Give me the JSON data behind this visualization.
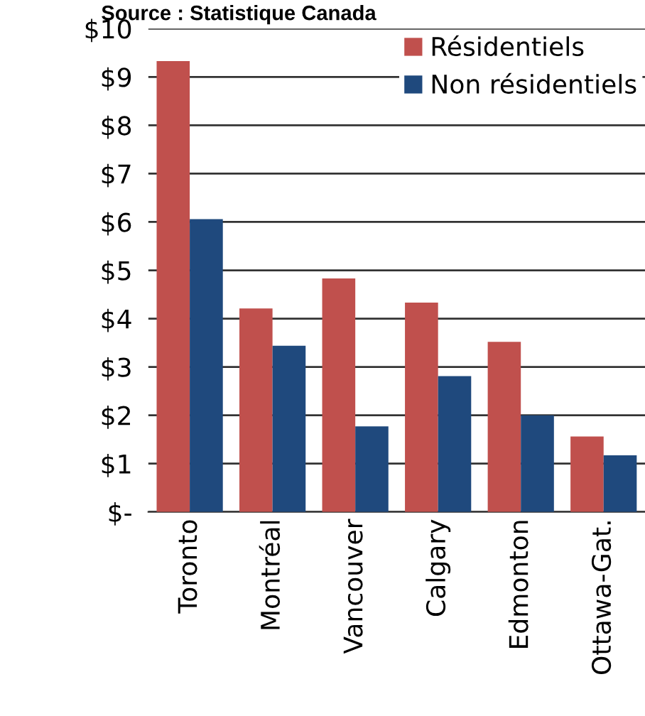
{
  "chart_data": {
    "type": "bar",
    "title": "Source : Statistique Canada",
    "categories": [
      "Toronto",
      "Montréal",
      "Vancouver",
      "Calgary",
      "Edmonton",
      "Ottawa-Gat."
    ],
    "series": [
      {
        "name": "Résidentiels",
        "color": "#c0504d",
        "values": [
          9.33,
          4.21,
          4.83,
          4.33,
          3.52,
          1.56
        ]
      },
      {
        "name": "Non résidentiels",
        "color": "#1f497d",
        "values": [
          6.06,
          3.44,
          1.77,
          2.81,
          2.0,
          1.17
        ]
      }
    ],
    "ylim": [
      0,
      10
    ],
    "yticks": [
      {
        "value": 0,
        "label": "$-"
      },
      {
        "value": 1,
        "label": "$1"
      },
      {
        "value": 2,
        "label": "$2"
      },
      {
        "value": 3,
        "label": "$3"
      },
      {
        "value": 4,
        "label": "$4"
      },
      {
        "value": 5,
        "label": "$5"
      },
      {
        "value": 6,
        "label": "$6"
      },
      {
        "value": 7,
        "label": "$7"
      },
      {
        "value": 8,
        "label": "$8"
      },
      {
        "value": 9,
        "label": "$9"
      },
      {
        "value": 10,
        "label": "$10"
      }
    ],
    "grid": "y",
    "legend": "top right"
  }
}
